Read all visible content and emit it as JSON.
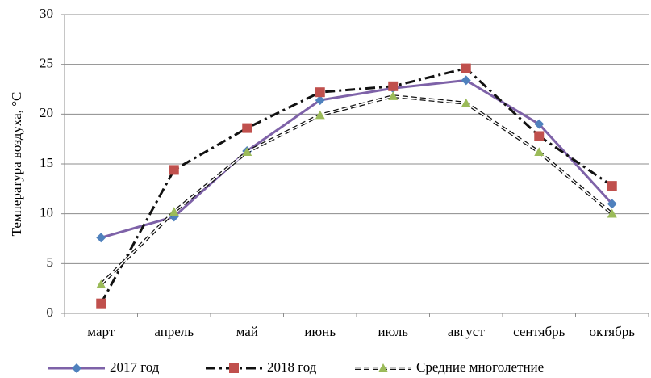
{
  "chart_data": {
    "type": "line",
    "ylabel": "Температура воздуха, °С",
    "categories": [
      "март",
      "апрель",
      "май",
      "июнь",
      "июль",
      "август",
      "сентябрь",
      "октябрь"
    ],
    "series": [
      {
        "name": "2017 год",
        "color": "#7e62a8",
        "marker_color": "#4f81bd",
        "marker": "diamond",
        "line_style": "solid",
        "values": [
          7.6,
          9.7,
          16.3,
          21.4,
          22.6,
          23.4,
          19.0,
          11.0
        ]
      },
      {
        "name": "2018 год",
        "color": "#111111",
        "marker_color": "#c0504d",
        "marker": "square",
        "line_style": "dashdot",
        "values": [
          1.0,
          14.4,
          18.6,
          22.2,
          22.8,
          24.6,
          17.8,
          12.8
        ]
      },
      {
        "name": "Средние многолетние",
        "color": "#111111",
        "marker_color": "#9bbb59",
        "marker": "triangle",
        "line_style": "double",
        "values": [
          2.9,
          10.2,
          16.2,
          19.9,
          21.8,
          21.1,
          16.2,
          10.0
        ]
      }
    ],
    "ylim": [
      0,
      30
    ],
    "yticks": [
      0,
      5,
      10,
      15,
      20,
      25,
      30
    ],
    "grid": true,
    "legend": "bottom"
  }
}
